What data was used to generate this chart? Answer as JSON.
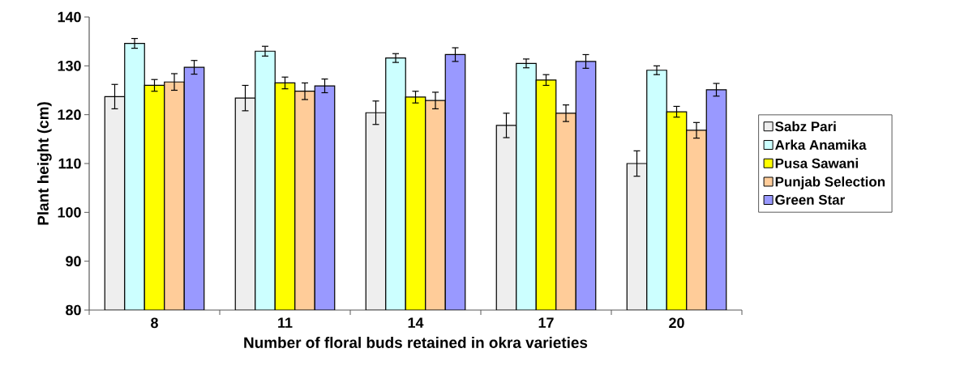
{
  "chart_data": {
    "type": "bar",
    "xlabel": "Number of floral buds retained in okra varieties",
    "ylabel": "Plant height (cm)",
    "categories": [
      "8",
      "11",
      "14",
      "17",
      "20"
    ],
    "ylim": [
      80,
      140
    ],
    "yticks": [
      80,
      90,
      100,
      110,
      120,
      130,
      140
    ],
    "legend": "right",
    "grid": false,
    "series": [
      {
        "name": "Sabz Pari",
        "color": "#eeeeee",
        "values": [
          123.7,
          123.4,
          120.4,
          117.8,
          110.0
        ],
        "errors": [
          2.5,
          2.6,
          2.4,
          2.5,
          2.6
        ]
      },
      {
        "name": "Arka Anamika",
        "color": "#ccffff",
        "values": [
          134.6,
          133.0,
          131.6,
          130.5,
          129.1
        ],
        "errors": [
          1.0,
          1.0,
          0.9,
          0.9,
          0.9
        ]
      },
      {
        "name": "Pusa Sawani",
        "color": "#ffff00",
        "values": [
          126.0,
          126.5,
          123.6,
          127.1,
          120.6
        ],
        "errors": [
          1.2,
          1.2,
          1.2,
          1.1,
          1.1
        ]
      },
      {
        "name": "Punjab Selection",
        "color": "#ffcc99",
        "values": [
          126.7,
          124.8,
          122.9,
          120.3,
          116.8
        ],
        "errors": [
          1.7,
          1.7,
          1.7,
          1.7,
          1.6
        ]
      },
      {
        "name": "Green Star",
        "color": "#9999ff",
        "values": [
          129.7,
          125.9,
          132.3,
          130.9,
          125.1
        ],
        "errors": [
          1.4,
          1.4,
          1.4,
          1.4,
          1.3
        ]
      }
    ]
  }
}
